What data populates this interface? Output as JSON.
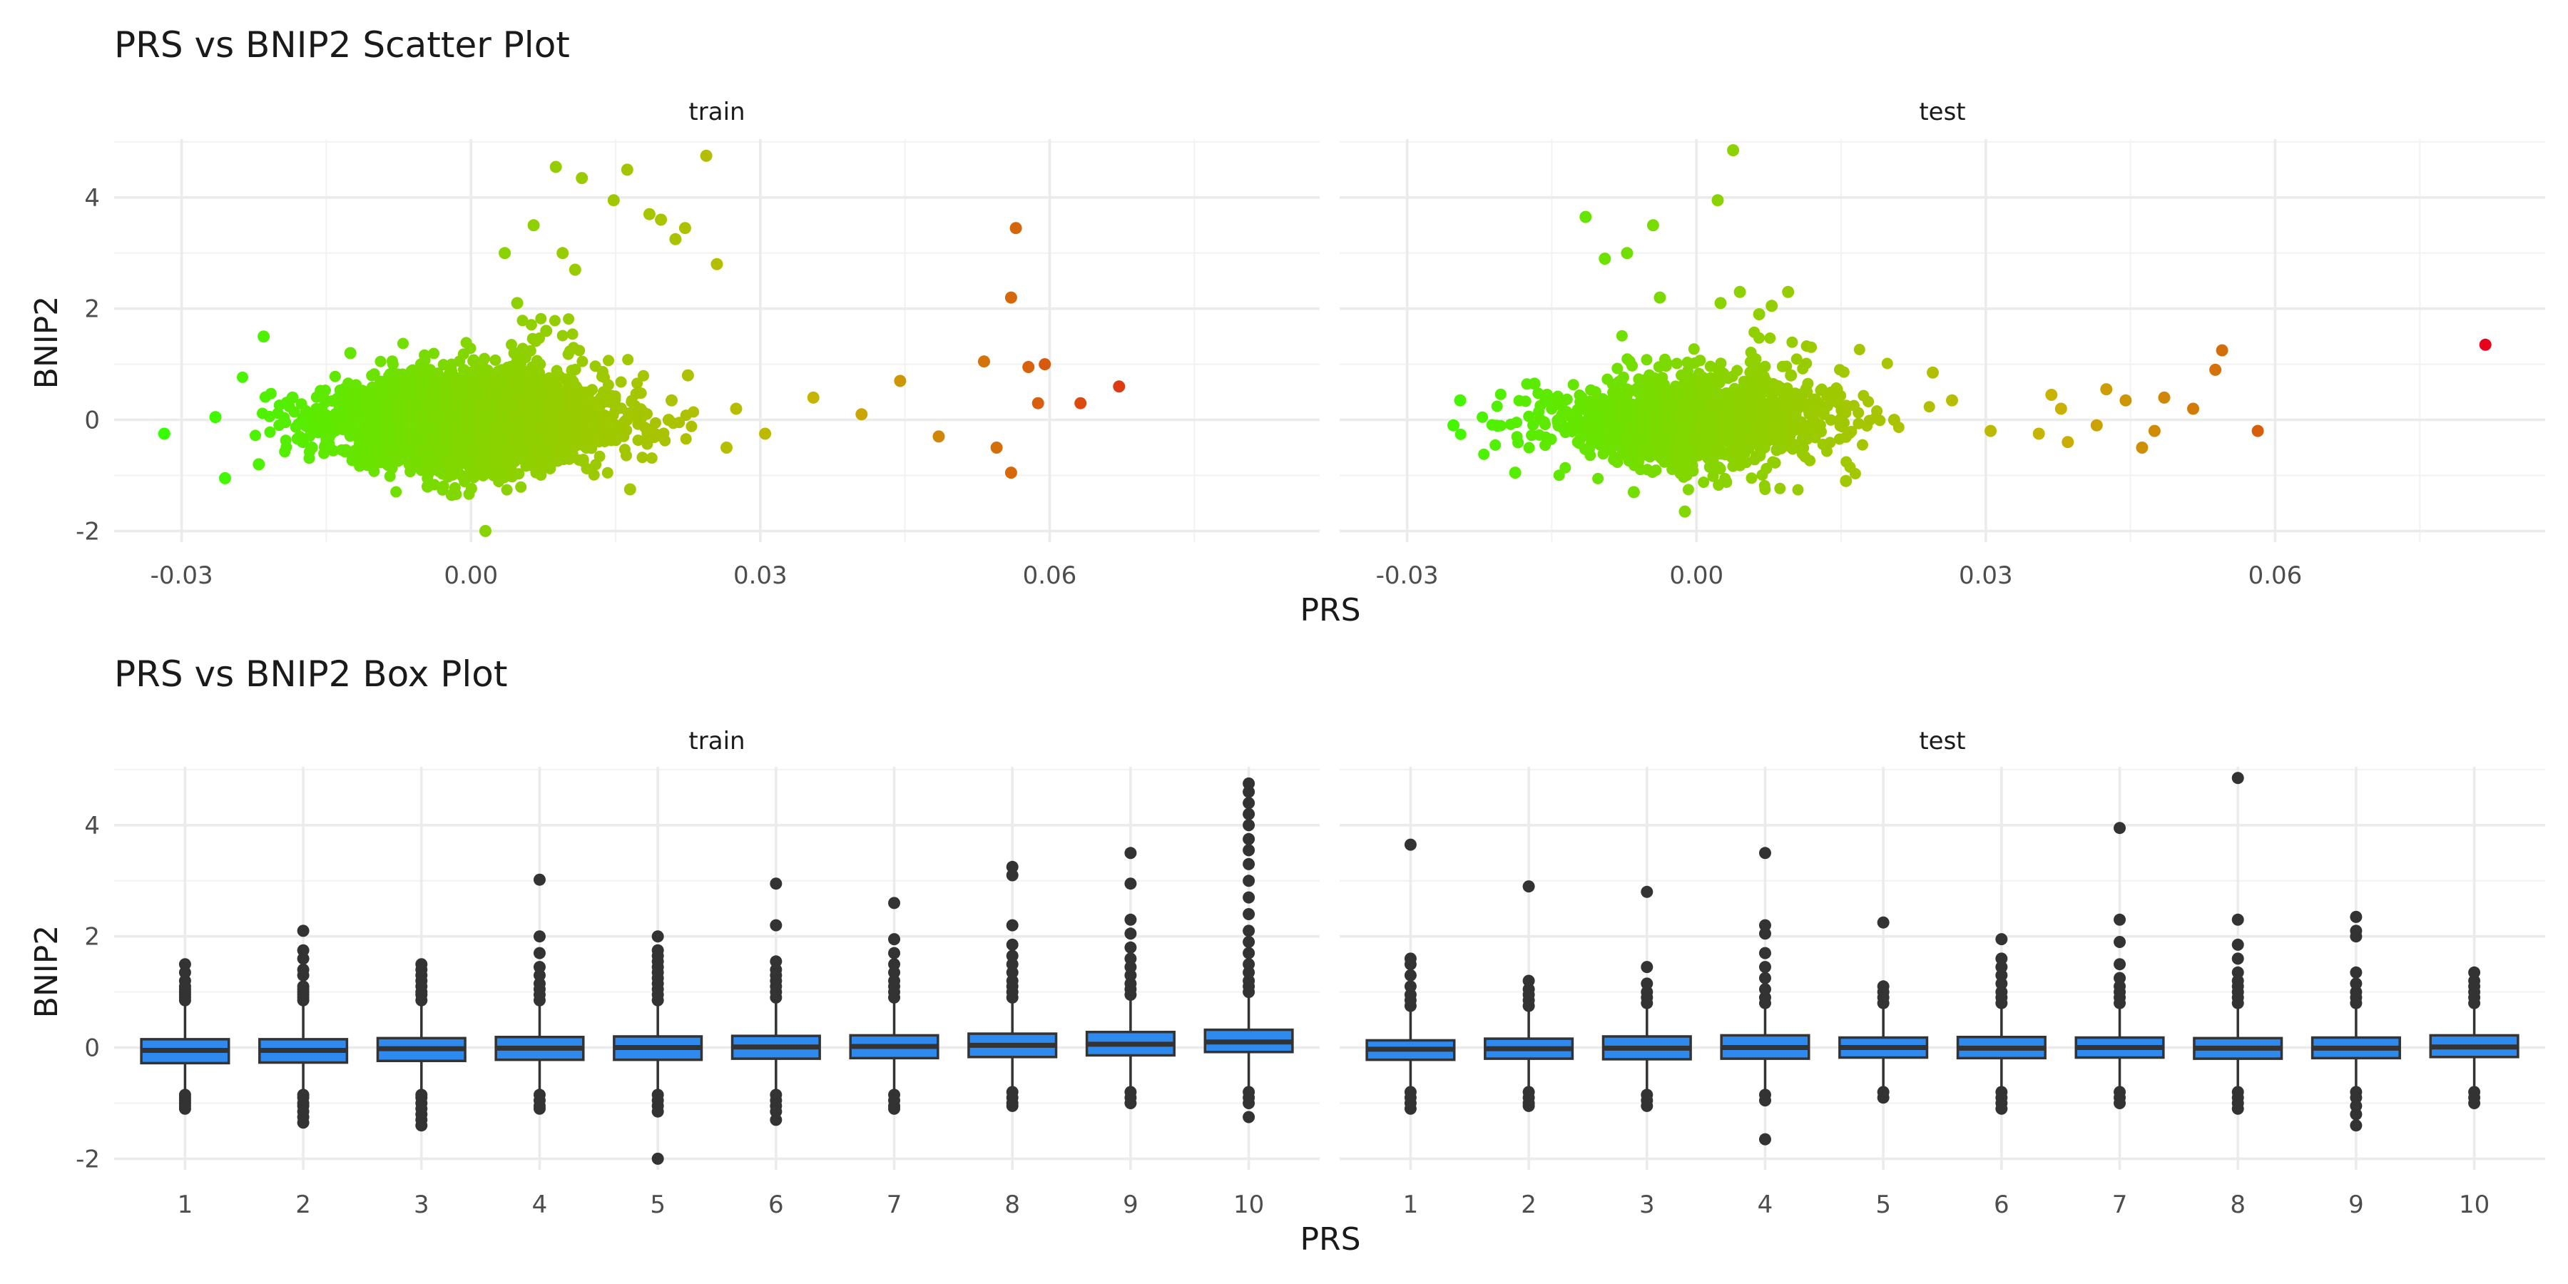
{
  "scatter": {
    "title": "PRS vs BNIP2 Scatter Plot",
    "xlabel": "PRS",
    "ylabel": "BNIP2"
  },
  "box": {
    "title": "PRS vs BNIP2 Box Plot",
    "xlabel": "PRS",
    "ylabel": "BNIP2"
  },
  "chart_data": [
    {
      "type": "scatter",
      "title": "PRS vs BNIP2 Scatter Plot",
      "xlabel": "PRS",
      "ylabel": "BNIP2",
      "xlim": [
        -0.037,
        0.088
      ],
      "ylim": [
        -2.2,
        5.05
      ],
      "x_ticks": [
        -0.03,
        0.0,
        0.03,
        0.06
      ],
      "x_tick_labels": [
        "-0.03",
        "0.00",
        "0.03",
        "0.06"
      ],
      "y_ticks": [
        -2,
        0,
        2,
        4
      ],
      "y_tick_labels": [
        "-2",
        "0",
        "2",
        "4"
      ],
      "grid": true,
      "legend": "none",
      "color_scale": {
        "low": "#33ff00",
        "mid": "#c8b400",
        "high": "#e8001a",
        "mapped_to": "PRS"
      },
      "panels": [
        {
          "name": "train",
          "x": [
            -0.0318,
            -0.0265,
            -0.0255,
            -0.022,
            -0.0215,
            -0.0185,
            0.0025,
            0.0045,
            0.0048,
            0.0035,
            0.0065,
            0.0078,
            0.0088,
            0.0095,
            0.0108,
            0.0115,
            0.0148,
            0.0162,
            0.0185,
            0.0197,
            0.0212,
            0.0222,
            0.0244,
            0.0255,
            0.0565,
            0.056,
            0.056,
            0.0588,
            0.0672,
            0.0595,
            0.0632,
            0.0545,
            0.0485,
            0.0445,
            0.0405,
            0.0355,
            0.0305,
            0.0275,
            0.0205,
            0.0165,
            -0.0165,
            -0.0125,
            -0.0045,
            -0.002,
            0.0015,
            0.0208,
            0.0265,
            0.0225,
            0.0532,
            0.0578
          ],
          "y": [
            -0.25,
            0.05,
            -1.05,
            -0.8,
            1.5,
            0.4,
            0.55,
            1.2,
            2.1,
            3.0,
            3.5,
            1.6,
            4.55,
            3.0,
            2.7,
            4.35,
            3.95,
            4.5,
            3.7,
            3.6,
            3.25,
            3.45,
            4.75,
            2.8,
            3.45,
            2.2,
            -0.95,
            0.3,
            0.6,
            1.0,
            0.3,
            -0.5,
            -0.3,
            0.7,
            0.1,
            0.4,
            -0.25,
            0.2,
            0.0,
            -1.25,
            -0.5,
            1.2,
            -1.2,
            -1.35,
            -2.0,
            0.35,
            -0.5,
            0.8,
            1.05,
            0.95
          ],
          "note_cloud": {
            "x_range": [
              -0.025,
              0.025
            ],
            "y_range": [
              -1.3,
              2.0
            ],
            "center": [
              0.0,
              0.0
            ],
            "n_approx": 4000
          }
        },
        {
          "name": "test",
          "x": [
            -0.0252,
            -0.0245,
            -0.0168,
            -0.0155,
            -0.0115,
            -0.0095,
            -0.0072,
            -0.0045,
            -0.0038,
            -0.0012,
            0.0022,
            0.0038,
            0.0045,
            0.0025,
            0.0065,
            0.0078,
            0.0095,
            0.0205,
            0.0245,
            0.0265,
            0.0305,
            0.0355,
            0.0368,
            0.0378,
            0.0385,
            0.0415,
            0.0425,
            0.0445,
            0.0462,
            0.0475,
            0.0485,
            0.0515,
            0.0538,
            0.0545,
            0.0582,
            0.0818,
            -0.0188,
            -0.0065,
            0.0155,
            0.0098
          ],
          "y": [
            -0.1,
            0.35,
            0.65,
            0.45,
            3.65,
            2.9,
            3.0,
            3.5,
            2.2,
            -1.65,
            3.95,
            4.85,
            2.3,
            2.1,
            1.9,
            2.05,
            2.3,
            0.0,
            0.85,
            0.35,
            -0.2,
            -0.25,
            0.45,
            0.2,
            -0.4,
            -0.1,
            0.55,
            0.35,
            -0.5,
            -0.2,
            0.4,
            0.2,
            0.9,
            1.25,
            -0.2,
            1.35,
            -0.95,
            -1.3,
            -1.1,
            0.8
          ],
          "note_cloud": {
            "x_range": [
              -0.025,
              0.025
            ],
            "y_range": [
              -1.4,
              1.8
            ],
            "center": [
              0.0,
              0.0
            ],
            "n_approx": 1500
          }
        }
      ]
    },
    {
      "type": "box",
      "title": "PRS vs BNIP2 Box Plot",
      "xlabel": "PRS",
      "ylabel": "BNIP2",
      "categories": [
        "1",
        "2",
        "3",
        "4",
        "5",
        "6",
        "7",
        "8",
        "9",
        "10"
      ],
      "ylim": [
        -2.2,
        5.05
      ],
      "y_ticks": [
        -2,
        0,
        2,
        4
      ],
      "y_tick_labels": [
        "-2",
        "0",
        "2",
        "4"
      ],
      "grid": true,
      "fill_color": "#2f8aef",
      "panels": [
        {
          "name": "train",
          "boxes": [
            {
              "q1": -0.28,
              "median": -0.05,
              "q3": 0.15,
              "lower": -0.75,
              "upper": 0.8,
              "outliers": [
                0.85,
                0.9,
                0.95,
                1.0,
                1.05,
                1.1,
                1.2,
                1.35,
                1.5,
                -0.85,
                -0.9,
                -0.95,
                -1.0,
                -1.05,
                -1.1
              ]
            },
            {
              "q1": -0.27,
              "median": -0.05,
              "q3": 0.15,
              "lower": -0.75,
              "upper": 0.8,
              "outliers": [
                0.85,
                0.9,
                0.95,
                1.0,
                1.05,
                1.1,
                1.3,
                1.4,
                1.6,
                1.75,
                2.1,
                -0.85,
                -0.9,
                -1.0,
                -1.05,
                -1.15,
                -1.25,
                -1.35
              ]
            },
            {
              "q1": -0.24,
              "median": -0.02,
              "q3": 0.17,
              "lower": -0.75,
              "upper": 0.8,
              "outliers": [
                0.85,
                0.95,
                1.0,
                1.1,
                1.2,
                1.3,
                1.4,
                1.5,
                -0.85,
                -0.9,
                -1.0,
                -1.1,
                -1.2,
                -1.3,
                -1.4
              ]
            },
            {
              "q1": -0.22,
              "median": -0.01,
              "q3": 0.19,
              "lower": -0.75,
              "upper": 0.8,
              "outliers": [
                0.85,
                0.95,
                1.05,
                1.15,
                1.3,
                1.45,
                1.7,
                2.0,
                3.02,
                -0.85,
                -0.95,
                -1.05,
                -1.1
              ]
            },
            {
              "q1": -0.22,
              "median": 0.0,
              "q3": 0.2,
              "lower": -0.75,
              "upper": 0.8,
              "outliers": [
                0.85,
                0.95,
                1.05,
                1.15,
                1.25,
                1.35,
                1.45,
                1.55,
                1.65,
                1.75,
                2.0,
                -0.85,
                -0.95,
                -1.05,
                -1.15,
                -2.0
              ]
            },
            {
              "q1": -0.2,
              "median": 0.01,
              "q3": 0.21,
              "lower": -0.75,
              "upper": 0.85,
              "outliers": [
                0.9,
                1.0,
                1.1,
                1.2,
                1.3,
                1.4,
                1.55,
                2.2,
                2.95,
                -0.85,
                -0.95,
                -1.05,
                -1.15,
                -1.3
              ]
            },
            {
              "q1": -0.19,
              "median": 0.02,
              "q3": 0.22,
              "lower": -0.75,
              "upper": 0.85,
              "outliers": [
                0.9,
                1.0,
                1.1,
                1.2,
                1.35,
                1.5,
                1.7,
                1.95,
                2.6,
                -0.85,
                -0.95,
                -1.05,
                -1.1
              ]
            },
            {
              "q1": -0.17,
              "median": 0.04,
              "q3": 0.25,
              "lower": -0.75,
              "upper": 0.85,
              "outliers": [
                0.9,
                1.0,
                1.1,
                1.2,
                1.35,
                1.5,
                1.65,
                1.85,
                2.2,
                3.1,
                3.25,
                -0.8,
                -0.9,
                -1.0,
                -1.05
              ]
            },
            {
              "q1": -0.14,
              "median": 0.06,
              "q3": 0.28,
              "lower": -0.75,
              "upper": 0.9,
              "outliers": [
                0.95,
                1.05,
                1.15,
                1.3,
                1.45,
                1.6,
                1.8,
                2.05,
                2.3,
                2.95,
                3.5,
                -0.8,
                -0.9,
                -1.0
              ]
            },
            {
              "q1": -0.08,
              "median": 0.1,
              "q3": 0.32,
              "lower": -0.75,
              "upper": 0.95,
              "outliers": [
                1.0,
                1.1,
                1.2,
                1.35,
                1.5,
                1.7,
                1.9,
                2.1,
                2.4,
                2.7,
                3.0,
                3.3,
                3.55,
                3.75,
                4.0,
                4.2,
                4.4,
                4.6,
                4.75,
                -0.8,
                -0.9,
                -1.0,
                -1.25
              ]
            }
          ]
        },
        {
          "name": "test",
          "boxes": [
            {
              "q1": -0.22,
              "median": -0.03,
              "q3": 0.13,
              "lower": -0.7,
              "upper": 0.7,
              "outliers": [
                0.75,
                0.85,
                0.95,
                1.1,
                1.3,
                1.5,
                1.6,
                3.65,
                -0.8,
                -0.9,
                -1.0,
                -1.1
              ]
            },
            {
              "q1": -0.2,
              "median": -0.02,
              "q3": 0.16,
              "lower": -0.7,
              "upper": 0.7,
              "outliers": [
                0.75,
                0.85,
                0.95,
                1.05,
                1.2,
                2.9,
                -0.8,
                -0.9,
                -1.0,
                -1.05
              ]
            },
            {
              "q1": -0.21,
              "median": -0.01,
              "q3": 0.2,
              "lower": -0.75,
              "upper": 0.75,
              "outliers": [
                0.8,
                0.9,
                1.0,
                1.15,
                1.45,
                2.8,
                -0.85,
                -0.95,
                -1.05
              ]
            },
            {
              "q1": -0.2,
              "median": 0.0,
              "q3": 0.22,
              "lower": -0.75,
              "upper": 0.75,
              "outliers": [
                0.8,
                0.9,
                1.05,
                1.25,
                1.45,
                1.7,
                2.05,
                2.2,
                3.5,
                -0.85,
                -0.95,
                -1.65
              ]
            },
            {
              "q1": -0.18,
              "median": 0.0,
              "q3": 0.18,
              "lower": -0.7,
              "upper": 0.7,
              "outliers": [
                0.8,
                0.9,
                1.0,
                1.1,
                2.25,
                -0.8,
                -0.9
              ]
            },
            {
              "q1": -0.19,
              "median": -0.01,
              "q3": 0.19,
              "lower": -0.7,
              "upper": 0.75,
              "outliers": [
                0.8,
                0.9,
                1.0,
                1.15,
                1.3,
                1.45,
                1.6,
                1.95,
                -0.8,
                -0.9,
                -1.0,
                -1.1
              ]
            },
            {
              "q1": -0.18,
              "median": 0.0,
              "q3": 0.18,
              "lower": -0.7,
              "upper": 0.7,
              "outliers": [
                0.8,
                0.9,
                1.0,
                1.1,
                1.25,
                1.5,
                1.9,
                2.3,
                3.95,
                -0.8,
                -0.9,
                -1.0
              ]
            },
            {
              "q1": -0.2,
              "median": -0.01,
              "q3": 0.17,
              "lower": -0.7,
              "upper": 0.7,
              "outliers": [
                0.8,
                0.9,
                1.0,
                1.1,
                1.2,
                1.35,
                1.6,
                1.85,
                2.3,
                4.85,
                -0.8,
                -0.9,
                -1.0,
                -1.1
              ]
            },
            {
              "q1": -0.19,
              "median": -0.01,
              "q3": 0.18,
              "lower": -0.7,
              "upper": 0.7,
              "outliers": [
                0.8,
                0.9,
                1.0,
                1.15,
                1.35,
                2.0,
                2.1,
                2.35,
                -0.8,
                -0.9,
                -1.05,
                -1.2,
                -1.4
              ]
            },
            {
              "q1": -0.17,
              "median": 0.01,
              "q3": 0.22,
              "lower": -0.7,
              "upper": 0.75,
              "outliers": [
                0.8,
                0.9,
                1.0,
                1.1,
                1.2,
                1.35,
                -0.8,
                -0.9,
                -1.0
              ]
            }
          ]
        }
      ]
    }
  ]
}
